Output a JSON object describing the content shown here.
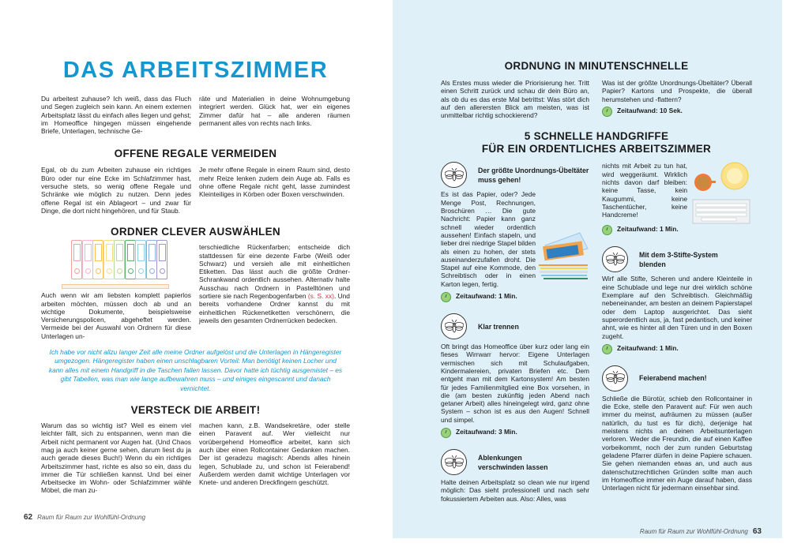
{
  "left_page": {
    "title": "DAS ARBEITSZIMMER",
    "intro_col1": "Du arbeitest zuhause? Ich weiß, dass das Fluch und Segen zugleich sein kann. An einem externen Arbeitsplatz lässt du einfach alles liegen und gehst; im Homeoffice hingegen müssen eingehende Briefe, Unterlagen, technische Ge-",
    "intro_col2": "räte und Materialien in deine Wohnumgebung integriert werden. Glück hat, wer ein eigenes Zimmer dafür hat – alle anderen räumen permanent alles von rechts nach links.",
    "sections": [
      {
        "heading": "OFFENE REGALE VERMEIDEN",
        "col1": "Egal, ob du zum Arbeiten zuhause ein richtiges Büro oder nur eine Ecke im Schlafzimmer hast, versuche stets, so wenig offene Regale und Schränke wie möglich zu nutzen. Denn jedes offene Regal ist ein Ablageort – und zwar für Dinge, die dort nicht hingehören, und für Staub.",
        "col2": "Je mehr offene Regale in einem Raum sind, desto mehr Reize lenken zudem dein Auge ab. Falls es ohne offene Regale nicht geht, lasse zumindest Kleinteiliges in Körben oder Boxen verschwinden."
      },
      {
        "heading": "ORDNER CLEVER AUSWÄHLEN",
        "col1": "Auch wenn wir am liebsten komplett papierlos arbeiten möchten, müssen doch ab und an wichtige Dokumente, beispielsweise Versicherungspolicen, abgeheftet werden. Vermeide bei der Auswahl von Ordnern für diese Unterlagen un-",
        "col2_a": "terschiedliche Rückenfarben; entscheide dich stattdessen für eine dezente Farbe (Weiß oder Schwarz) und versieh alle mit einheitlichen Etiketten. Das lässt auch die größte Ordner-Schrankwand ordentlich aussehen. Alternativ halte Ausschau nach Ordnern in Pastelltönen und sortiere sie nach Regenbogenfarben ",
        "col2_ref": "(s. S. xx)",
        "col2_b": ". Und bereits vorhandene Ordner kannst du mit einheitlichen Rückenetiketten verschönern, die jeweils den gesamten Ordnerrücken bedecken."
      },
      {
        "heading": "VERSTECK DIE ARBEIT!",
        "col1": "Warum das so wichtig ist? Weil es einem viel leichter fällt, sich zu entspannen, wenn man die Arbeit nicht permanent vor Augen hat. (Und Chaos mag ja auch keiner gerne sehen, darum liest du ja auch gerade dieses Buch!) Wenn du ein richtiges Arbeitszimmer hast, richte es also so ein, dass du immer die Tür schließen kannst. Und bei einer Arbeitsecke im Wohn- oder Schlafzimmer wähle Möbel, die man zu-",
        "col2": "machen kann, z.B. Wandsekretäre, oder stelle einen Paravent auf. Wer vielleicht nur vorübergehend Homeoffice arbeitet, kann sich auch über einen Rollcontainer Gedanken machen. Der ist geradezu magisch: Abends alles hinein legen, Schublade zu, und schon ist Feierabend! Außerdem werden damit wichtige Unterlagen vor Knete- und anderen Dreckfingern geschützt."
      }
    ],
    "quote": "Ich habe vor nicht allzu langer Zeit alle meine Ordner aufgelöst und die Unterlagen in Hängeregister umgezogen. Hängeregister haben einen unschlagbaren Vorteil: Man benötigt keinen Locher und kann alles mit einem Handgriff in die Taschen fallen lassen. Davor hatte ich tüchtig ausgemistet – es gibt Tabellen, was man wie lange aufbewahren muss – und einiges eingescannt und danach vernichtet.",
    "page_number": "62",
    "footer": "Raum für Raum zur Wohlfühl-Ordnung"
  },
  "right_page": {
    "heading": "ORDNUNG IN MINUTENSCHNELLE",
    "col1": "Als Erstes muss wieder die Priorisierung her. Tritt einen Schritt zurück und schau dir dein Büro an, als ob du es das erste Mal betrittst: Was stört dich auf den allerersten Blick am meisten, was ist unmittelbar richtig schockierend?",
    "col2": "Was ist der größte Unordnungs-Übeltäter? Überall Papier? Kartons und Prospekte, die überall herumstehen und -flattern?",
    "time0": "Zeitaufwand: 10 Sek.",
    "heading2_line1": "5 SCHNELLE HANDGRIFFE",
    "heading2_line2": "FÜR EIN ORDENTLICHES ARBEITSZIMMER",
    "tips": [
      {
        "title": "Der größte Unordnungs-Übeltäter muss gehen!",
        "text": "Es ist das Papier, oder? Jede Menge Post, Rechnungen, Broschüren … Die gute Nachricht: Papier kann ganz schnell wieder ordentlich aussehen! Einfach stapeln, und lieber drei niedrige Stapel bilden als einen zu hohen, der stets auseinanderzufallen droht. Die Stapel auf eine Kommode, den Schreibtisch oder in einen Karton legen, fertig.",
        "time": "Zeitaufwand: 1 Min."
      },
      {
        "title": "Klar trennen",
        "text": "Oft bringt das Homeoffice über kurz oder lang ein fieses Wirrwarr hervor: Eigene Unterlagen vermischen sich mit Schulaufgaben, Kindermalereien, privaten Briefen etc. Dem entgeht man mit dem Kartonsystem! Am besten für jedes Familienmitglied eine Box vorsehen, in die (am besten zukünftig jeden Abend nach getaner Arbeit) alles hineingelegt wird, ganz ohne System – schon ist es aus den Augen! Schnell und simpel.",
        "time": "Zeitaufwand: 3 Min."
      },
      {
        "title": "Ablenkungen verschwinden lassen",
        "text": "Halte deinen Arbeitsplatz so clean wie nur irgend möglich: Das sieht professionell und nach sehr fokussiertem Arbeiten aus. Also: Alles, was",
        "text_cont": "nichts mit Arbeit zu tun hat, wird weggeräumt. Wirklich nichts davon darf bleiben: keine Tasse, kein Kaugummi, keine Taschentücher, keine Handcreme!",
        "time": "Zeitaufwand: 1 Min."
      },
      {
        "title": "Mit dem 3-Stifte-System blenden",
        "text": "Wirf alle Stifte, Scheren und andere Kleinteile in eine Schublade und lege nur drei wirklich schöne Exemplare auf den Schreibtisch. Gleichmäßig nebeneinander, am besten an deinem Papierstapel oder dem Laptop ausgerichtet. Das sieht superordentlich aus, ja, fast pedantisch, und keiner ahnt, wie es hinter all den Türen und in den Boxen zugeht.",
        "time": "Zeitaufwand: 1 Min."
      },
      {
        "title": "Feierabend machen!",
        "text": "Schließe die Bürotür, schieb den Rollcontainer in die Ecke, stelle den Paravent auf: Für wen auch immer du meinst, aufräumen zu müssen (außer natürlich, du tust es für dich), derjenige hat meistens nichts an deinen Arbeitsunterlagen verloren. Weder die Freundin, die auf einen Kaffee vorbeikommt, noch der zum runden Geburtstag geladene Pfarrer dürfen in deine Papiere schauen. Sie gehen niemanden etwas an, und auch aus datenschutzrechtlichen Gründen sollte man auch im Homeoffice immer ein Auge darauf haben, dass Unterlagen nicht für jedermann einsehbar sind."
      }
    ],
    "page_number": "63",
    "footer": "Raum für Raum zur Wohlfühl-Ordnung"
  },
  "colors": {
    "accent": "#1596cf",
    "right_page_bg": "#dff0f8",
    "reference": "#e0303c",
    "clock": "#9bd07a"
  },
  "icons": [
    "bee-icon",
    "clock-icon",
    "binders-illustration",
    "papers-illustration",
    "coffee-illustration",
    "keyboard-illustration"
  ]
}
